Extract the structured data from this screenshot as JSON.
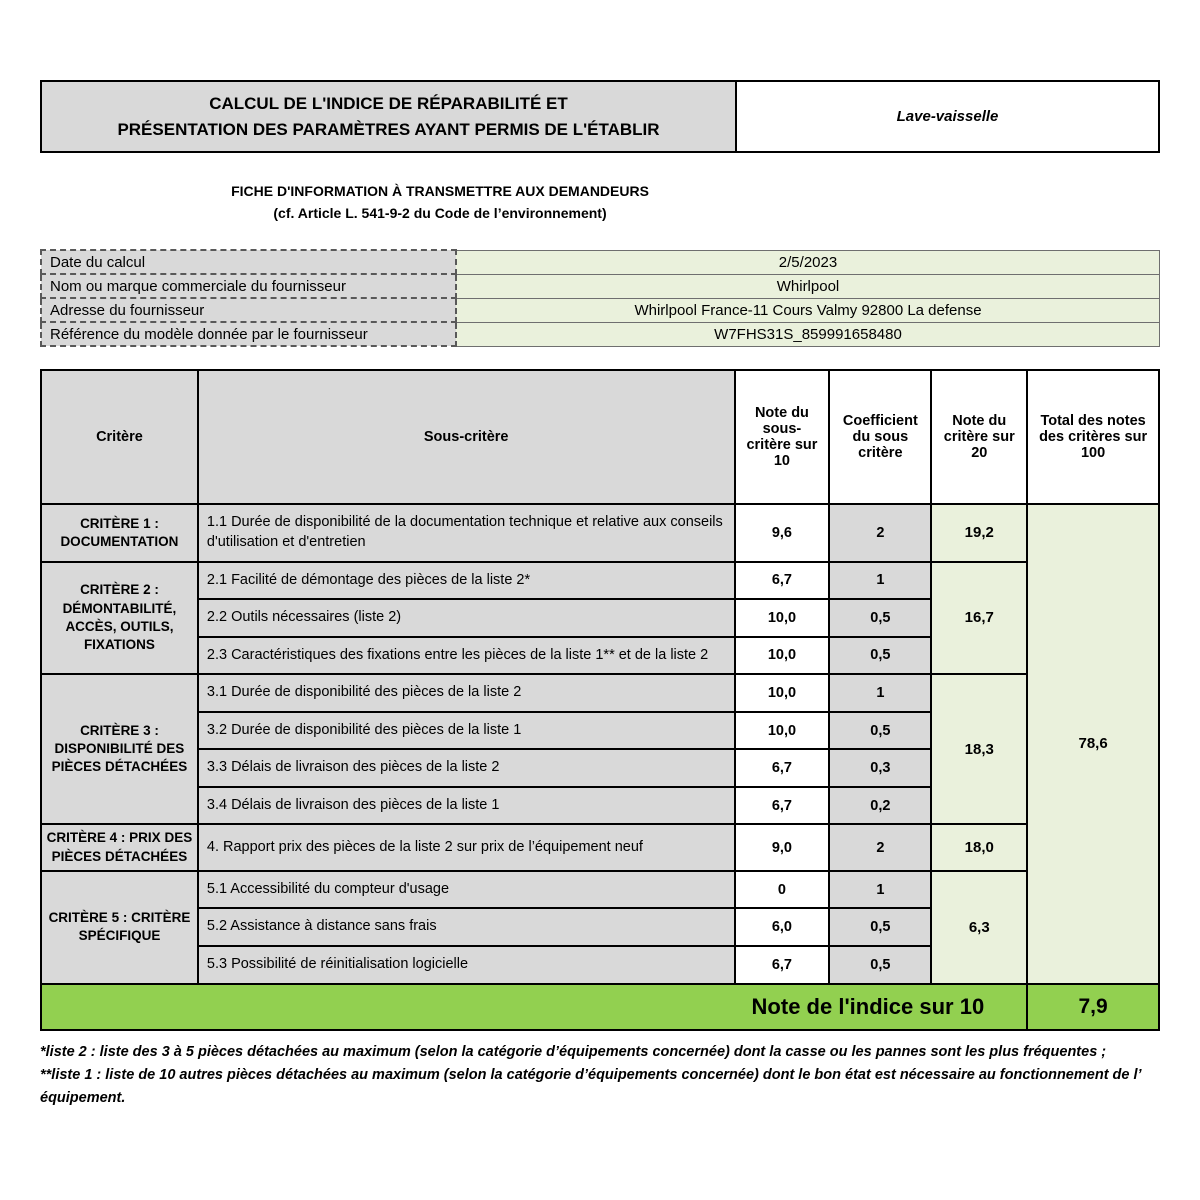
{
  "colors": {
    "gray": "#d9d9d9",
    "light_green": "#eaf1dc",
    "bright_green": "#92d050"
  },
  "header": {
    "title_line1": "CALCUL DE L'INDICE DE RÉPARABILITÉ ET",
    "title_line2": "PRÉSENTATION DES PARAMÈTRES AYANT PERMIS DE L'ÉTABLIR",
    "product": "Lave-vaisselle"
  },
  "subtitle": {
    "line1": "FICHE D'INFORMATION À TRANSMETTRE AUX DEMANDEURS",
    "line2": "(cf. Article L. 541-9-2 du Code de l’environnement)"
  },
  "info": {
    "rows": [
      {
        "label": "Date du calcul",
        "value": "2/5/2023"
      },
      {
        "label": "Nom ou marque commerciale du fournisseur",
        "value": "Whirlpool"
      },
      {
        "label": "Adresse du fournisseur",
        "value": "Whirlpool France-11 Cours Valmy 92800 La defense"
      },
      {
        "label": "Référence du modèle donnée par le fournisseur",
        "value": "W7FHS31S_859991658480"
      }
    ]
  },
  "table": {
    "headers": {
      "critere": "Critère",
      "sous_critere": "Sous-critère",
      "note_sous_critere": "Note du sous-critère sur 10",
      "coefficient": "Coefficient du sous critère",
      "note_critere": "Note du critère sur 20",
      "total": "Total des notes des critères sur 100"
    },
    "criteria": [
      {
        "name": "CRITÈRE 1 : DOCUMENTATION",
        "note20": "19,2",
        "subs": [
          {
            "label": "1.1 Durée de disponibilité de la documentation technique et relative aux conseils d'utilisation et d'entretien",
            "note10": "9,6",
            "coef": "2"
          }
        ]
      },
      {
        "name": "CRITÈRE 2 : DÉMONTABILITÉ, ACCÈS, OUTILS, FIXATIONS",
        "note20": "16,7",
        "subs": [
          {
            "label": "2.1 Facilité de démontage des pièces de la liste 2*",
            "note10": "6,7",
            "coef": "1"
          },
          {
            "label": "2.2 Outils nécessaires (liste 2)",
            "note10": "10,0",
            "coef": "0,5"
          },
          {
            "label": "2.3 Caractéristiques des fixations entre les pièces de la liste 1** et de la liste 2",
            "note10": "10,0",
            "coef": "0,5"
          }
        ]
      },
      {
        "name": "CRITÈRE 3 : DISPONIBILITÉ DES PIÈCES DÉTACHÉES",
        "note20": "18,3",
        "subs": [
          {
            "label": "3.1 Durée de disponibilité des pièces de la liste 2",
            "note10": "10,0",
            "coef": "1"
          },
          {
            "label": "3.2 Durée de disponibilité des pièces de la liste 1",
            "note10": "10,0",
            "coef": "0,5"
          },
          {
            "label": "3.3 Délais de livraison des pièces de la liste 2",
            "note10": "6,7",
            "coef": "0,3"
          },
          {
            "label": "3.4 Délais de livraison des pièces de la liste 1",
            "note10": "6,7",
            "coef": "0,2"
          }
        ]
      },
      {
        "name": "CRITÈRE 4 : PRIX DES PIÈCES DÉTACHÉES",
        "note20": "18,0",
        "subs": [
          {
            "label": "4. Rapport prix des pièces de la liste 2 sur prix de l’équipement neuf",
            "note10": "9,0",
            "coef": "2"
          }
        ]
      },
      {
        "name": "CRITÈRE 5 : CRITÈRE SPÉCIFIQUE",
        "note20": "6,3",
        "subs": [
          {
            "label": "5.1 Accessibilité du compteur d'usage",
            "note10": "0",
            "coef": "1"
          },
          {
            "label": "5.2 Assistance à distance sans frais",
            "note10": "6,0",
            "coef": "0,5"
          },
          {
            "label": "5.3 Possibilité de réinitialisation logicielle",
            "note10": "6,7",
            "coef": "0,5"
          }
        ]
      }
    ],
    "total100": "78,6",
    "index_label": "Note de l'indice sur 10",
    "index_value": "7,9"
  },
  "footnotes": [
    "*liste 2 : liste des 3 à 5 pièces détachées au maximum (selon la catégorie d’équipements concernée) dont la casse ou les pannes sont les plus fréquentes ;",
    "**liste 1 : liste de 10 autres pièces détachées au maximum (selon la catégorie d’équipements concernée) dont le bon état est nécessaire au fonctionnement de l’ équipement."
  ]
}
